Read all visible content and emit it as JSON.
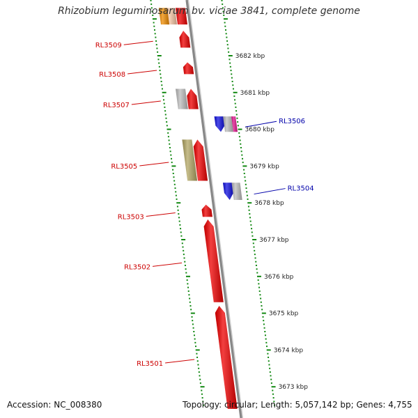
{
  "title": "Rhizobium leguminosarum bv. viciae 3841, complete genome",
  "footer": {
    "accession": "Accession: NC_008380",
    "summary": "Topology: circular; Length: 5,057,142 bp; Genes: 4,755"
  },
  "colors": {
    "forward_gene": "#ee0000",
    "reverse_gene": "#1010e0",
    "orange_gene": "#f08c00",
    "grey_gene": "#bdbdbd",
    "olive_gene": "#b3a764",
    "magenta_gene": "#e0108c",
    "peach_gene": "#f7c7a6",
    "forward_label": "#cc0000",
    "reverse_label": "#0000aa",
    "axis": "#888888",
    "ticks": "#118811"
  },
  "diagram": {
    "sequence_kbp": [
      3673,
      3674,
      3675,
      3676,
      3677,
      3678,
      3679,
      3680,
      3681,
      3682,
      3683
    ],
    "scale_labels": [
      {
        "kbp": 3682,
        "text": "3682 kbp"
      },
      {
        "kbp": 3681,
        "text": "3681 kbp"
      },
      {
        "kbp": 3680,
        "text": "3680 kbp"
      },
      {
        "kbp": 3679,
        "text": "3679 kbp"
      },
      {
        "kbp": 3678,
        "text": "3678 kbp"
      },
      {
        "kbp": 3677,
        "text": "3677 kbp"
      },
      {
        "kbp": 3676,
        "text": "3676 kbp"
      },
      {
        "kbp": 3675,
        "text": "3675 kbp"
      },
      {
        "kbp": 3674,
        "text": "3674 kbp"
      },
      {
        "kbp": 3673,
        "text": "3673 kbp"
      }
    ],
    "forward_genes": [
      {
        "id": "g-top-peach",
        "start": 3682.85,
        "end": 3683.3,
        "lane": "left2",
        "color": "peach_gene",
        "arrow": false
      },
      {
        "id": "g-top-orange",
        "start": 3682.85,
        "end": 3683.3,
        "lane": "left3",
        "color": "orange_gene",
        "arrow": false
      },
      {
        "id": "g-top-red",
        "start": 3682.85,
        "end": 3683.3,
        "lane": "left1",
        "color": "forward_gene",
        "arrow": false
      },
      {
        "id": "g-rl3509",
        "start": 3682.22,
        "end": 3682.68,
        "lane": "left1",
        "color": "forward_gene",
        "arrow": true,
        "label": "RL3509"
      },
      {
        "id": "g-rl3508",
        "start": 3681.5,
        "end": 3681.82,
        "lane": "left1",
        "color": "forward_gene",
        "arrow": true,
        "label": "RL3508"
      },
      {
        "id": "g-3507grey",
        "start": 3680.55,
        "end": 3681.1,
        "lane": "left2",
        "color": "grey_gene",
        "arrow": false
      },
      {
        "id": "g-rl3507",
        "start": 3680.55,
        "end": 3681.1,
        "lane": "left1",
        "color": "forward_gene",
        "arrow": true,
        "label": "RL3507"
      },
      {
        "id": "g-3505olive",
        "start": 3678.6,
        "end": 3679.72,
        "lane": "left2",
        "color": "olive_gene",
        "arrow": false
      },
      {
        "id": "g-rl3505",
        "start": 3678.6,
        "end": 3679.72,
        "lane": "left1",
        "color": "forward_gene",
        "arrow": true,
        "label": "RL3505"
      },
      {
        "id": "g-rl3503",
        "start": 3677.62,
        "end": 3677.95,
        "lane": "left1",
        "color": "forward_gene",
        "arrow": true,
        "label": "RL3503"
      },
      {
        "id": "g-rl3502",
        "start": 3675.3,
        "end": 3677.55,
        "lane": "left1",
        "color": "forward_gene",
        "arrow": true,
        "label": "RL3502"
      },
      {
        "id": "g-rl3501",
        "start": 3672.4,
        "end": 3675.2,
        "lane": "left1",
        "color": "forward_gene",
        "arrow": true,
        "label": "RL3501"
      }
    ],
    "reverse_genes": [
      {
        "id": "g-rl3506",
        "start": 3679.93,
        "end": 3680.35,
        "lane": "right1",
        "color": "reverse_gene",
        "arrow": true,
        "label": "RL3506"
      },
      {
        "id": "g-3506grey",
        "start": 3679.93,
        "end": 3680.35,
        "lane": "right2",
        "color": "grey_gene",
        "arrow": false
      },
      {
        "id": "g-3506mag",
        "start": 3679.93,
        "end": 3680.35,
        "lane": "right3",
        "color": "magenta_gene",
        "arrow": false
      },
      {
        "id": "g-rl3504",
        "start": 3678.08,
        "end": 3678.55,
        "lane": "right1",
        "color": "reverse_gene",
        "arrow": true,
        "label": "RL3504"
      },
      {
        "id": "g-3504grey",
        "start": 3678.08,
        "end": 3678.55,
        "lane": "right2",
        "color": "grey_gene",
        "arrow": false
      }
    ]
  }
}
